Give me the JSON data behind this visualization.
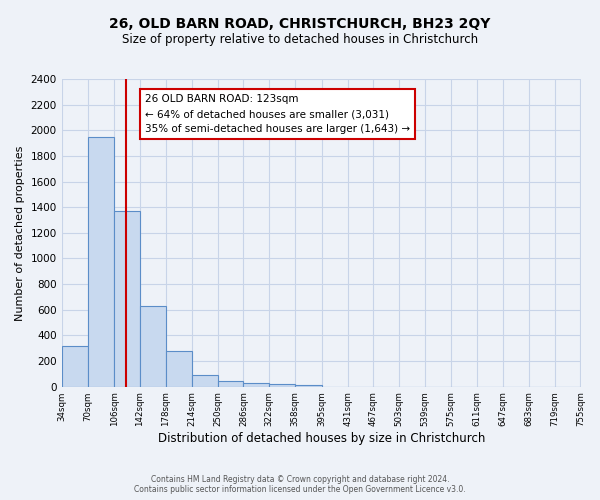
{
  "title": "26, OLD BARN ROAD, CHRISTCHURCH, BH23 2QY",
  "subtitle": "Size of property relative to detached houses in Christchurch",
  "xlabel": "Distribution of detached houses by size in Christchurch",
  "ylabel": "Number of detached properties",
  "bar_edges": [
    34,
    70,
    106,
    142,
    178,
    214,
    250,
    286,
    322,
    358,
    395,
    431,
    467,
    503,
    539,
    575,
    611,
    647,
    683,
    719,
    755
  ],
  "bar_heights": [
    320,
    1950,
    1370,
    630,
    280,
    95,
    45,
    30,
    20,
    15,
    0,
    0,
    0,
    0,
    0,
    0,
    0,
    0,
    0,
    0
  ],
  "bar_color": "#c8d9ef",
  "bar_edge_color": "#5b8dc8",
  "bar_edge_width": 0.8,
  "vline_x": 123,
  "vline_color": "#cc0000",
  "annotation_title": "26 OLD BARN ROAD: 123sqm",
  "annotation_line1": "← 64% of detached houses are smaller (3,031)",
  "annotation_line2": "35% of semi-detached houses are larger (1,643) →",
  "annotation_fontsize": 7.5,
  "ylim": [
    0,
    2400
  ],
  "yticks": [
    0,
    200,
    400,
    600,
    800,
    1000,
    1200,
    1400,
    1600,
    1800,
    2000,
    2200,
    2400
  ],
  "footer1": "Contains HM Land Registry data © Crown copyright and database right 2024.",
  "footer2": "Contains public sector information licensed under the Open Government Licence v3.0.",
  "bg_color": "#eef2f8",
  "plot_bg_color": "#eef2f8",
  "grid_color": "#c8d4e8",
  "title_fontsize": 10,
  "subtitle_fontsize": 8.5,
  "xlabel_fontsize": 8.5,
  "ylabel_fontsize": 8
}
